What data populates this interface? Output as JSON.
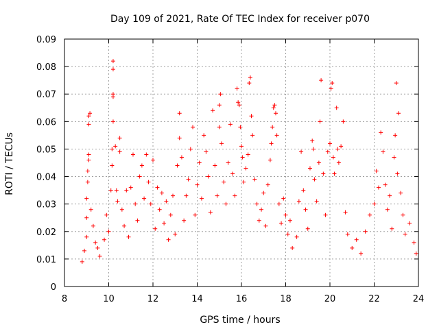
{
  "chart_data": {
    "type": "scatter",
    "title": "Day 109 of 2021, Rate Of TEC Index for receiver p070",
    "xlabel": "GPS time / hours",
    "ylabel": "ROTI / TECUs",
    "xlim": [
      8,
      24
    ],
    "ylim": [
      0,
      0.09
    ],
    "x_ticks": [
      8,
      10,
      12,
      14,
      16,
      18,
      20,
      22,
      24
    ],
    "x_tick_labels": [
      "8",
      "10",
      "12",
      "14",
      "16",
      "18",
      "20",
      "22",
      "24"
    ],
    "y_ticks": [
      0,
      0.01,
      0.02,
      0.03,
      0.04,
      0.05,
      0.06,
      0.07,
      0.08,
      0.09
    ],
    "y_tick_labels": [
      "0",
      "0.01",
      "0.02",
      "0.03",
      "0.04",
      "0.05",
      "0.06",
      "0.07",
      "0.08",
      "0.09"
    ],
    "grid": true,
    "marker": "plus",
    "series": [
      {
        "name": "ROTI",
        "color": "#ff0000",
        "points": [
          [
            8.8,
            0.009
          ],
          [
            8.9,
            0.013
          ],
          [
            9.0,
            0.018
          ],
          [
            9.0,
            0.025
          ],
          [
            9.0,
            0.032
          ],
          [
            9.05,
            0.038
          ],
          [
            9.05,
            0.042
          ],
          [
            9.1,
            0.046
          ],
          [
            9.1,
            0.048
          ],
          [
            9.1,
            0.059
          ],
          [
            9.1,
            0.062
          ],
          [
            9.15,
            0.063
          ],
          [
            9.2,
            0.028
          ],
          [
            9.3,
            0.022
          ],
          [
            9.4,
            0.016
          ],
          [
            9.5,
            0.014
          ],
          [
            9.6,
            0.011
          ],
          [
            9.8,
            0.017
          ],
          [
            9.9,
            0.026
          ],
          [
            10.0,
            0.02
          ],
          [
            10.1,
            0.035
          ],
          [
            10.15,
            0.044
          ],
          [
            10.15,
            0.05
          ],
          [
            10.2,
            0.06
          ],
          [
            10.2,
            0.069
          ],
          [
            10.2,
            0.07
          ],
          [
            10.2,
            0.079
          ],
          [
            10.2,
            0.082
          ],
          [
            10.3,
            0.051
          ],
          [
            10.35,
            0.035
          ],
          [
            10.4,
            0.031
          ],
          [
            10.5,
            0.054
          ],
          [
            10.5,
            0.049
          ],
          [
            10.6,
            0.028
          ],
          [
            10.7,
            0.022
          ],
          [
            10.8,
            0.035
          ],
          [
            10.9,
            0.018
          ],
          [
            11.0,
            0.036
          ],
          [
            11.1,
            0.048
          ],
          [
            11.2,
            0.03
          ],
          [
            11.3,
            0.024
          ],
          [
            11.4,
            0.04
          ],
          [
            11.5,
            0.044
          ],
          [
            11.6,
            0.032
          ],
          [
            11.7,
            0.048
          ],
          [
            11.8,
            0.038
          ],
          [
            11.9,
            0.03
          ],
          [
            12.0,
            0.046
          ],
          [
            12.1,
            0.021
          ],
          [
            12.2,
            0.036
          ],
          [
            12.3,
            0.028
          ],
          [
            12.4,
            0.034
          ],
          [
            12.5,
            0.023
          ],
          [
            12.6,
            0.031
          ],
          [
            12.7,
            0.017
          ],
          [
            12.8,
            0.026
          ],
          [
            12.9,
            0.033
          ],
          [
            13.0,
            0.019
          ],
          [
            13.1,
            0.044
          ],
          [
            13.2,
            0.054
          ],
          [
            13.2,
            0.063
          ],
          [
            13.3,
            0.047
          ],
          [
            13.4,
            0.024
          ],
          [
            13.5,
            0.033
          ],
          [
            13.6,
            0.039
          ],
          [
            13.7,
            0.05
          ],
          [
            13.8,
            0.058
          ],
          [
            13.9,
            0.026
          ],
          [
            14.0,
            0.037
          ],
          [
            14.1,
            0.045
          ],
          [
            14.2,
            0.032
          ],
          [
            14.3,
            0.055
          ],
          [
            14.4,
            0.049
          ],
          [
            14.5,
            0.04
          ],
          [
            14.6,
            0.027
          ],
          [
            14.7,
            0.064
          ],
          [
            14.8,
            0.044
          ],
          [
            14.9,
            0.033
          ],
          [
            15.0,
            0.058
          ],
          [
            15.0,
            0.066
          ],
          [
            15.05,
            0.07
          ],
          [
            15.1,
            0.052
          ],
          [
            15.2,
            0.038
          ],
          [
            15.3,
            0.03
          ],
          [
            15.4,
            0.045
          ],
          [
            15.5,
            0.059
          ],
          [
            15.6,
            0.041
          ],
          [
            15.7,
            0.033
          ],
          [
            15.8,
            0.072
          ],
          [
            15.85,
            0.067
          ],
          [
            15.9,
            0.066
          ],
          [
            15.95,
            0.058
          ],
          [
            16.0,
            0.051
          ],
          [
            16.05,
            0.047
          ],
          [
            16.1,
            0.038
          ],
          [
            16.2,
            0.043
          ],
          [
            16.3,
            0.048
          ],
          [
            16.35,
            0.074
          ],
          [
            16.4,
            0.076
          ],
          [
            16.45,
            0.062
          ],
          [
            16.5,
            0.055
          ],
          [
            16.6,
            0.039
          ],
          [
            16.7,
            0.03
          ],
          [
            16.8,
            0.024
          ],
          [
            16.9,
            0.028
          ],
          [
            17.0,
            0.034
          ],
          [
            17.1,
            0.022
          ],
          [
            17.2,
            0.037
          ],
          [
            17.3,
            0.046
          ],
          [
            17.35,
            0.052
          ],
          [
            17.4,
            0.058
          ],
          [
            17.45,
            0.065
          ],
          [
            17.5,
            0.066
          ],
          [
            17.55,
            0.063
          ],
          [
            17.6,
            0.055
          ],
          [
            17.7,
            0.03
          ],
          [
            17.8,
            0.023
          ],
          [
            17.9,
            0.032
          ],
          [
            18.0,
            0.026
          ],
          [
            18.1,
            0.019
          ],
          [
            18.2,
            0.024
          ],
          [
            18.3,
            0.014
          ],
          [
            18.5,
            0.018
          ],
          [
            18.6,
            0.031
          ],
          [
            18.7,
            0.049
          ],
          [
            18.8,
            0.035
          ],
          [
            18.9,
            0.028
          ],
          [
            19.0,
            0.021
          ],
          [
            19.1,
            0.043
          ],
          [
            19.2,
            0.053
          ],
          [
            19.25,
            0.05
          ],
          [
            19.3,
            0.039
          ],
          [
            19.4,
            0.031
          ],
          [
            19.5,
            0.045
          ],
          [
            19.55,
            0.06
          ],
          [
            19.6,
            0.075
          ],
          [
            19.7,
            0.041
          ],
          [
            19.8,
            0.026
          ],
          [
            19.9,
            0.049
          ],
          [
            20.0,
            0.052
          ],
          [
            20.05,
            0.072
          ],
          [
            20.1,
            0.074
          ],
          [
            20.15,
            0.047
          ],
          [
            20.2,
            0.041
          ],
          [
            20.3,
            0.065
          ],
          [
            20.35,
            0.05
          ],
          [
            20.4,
            0.045
          ],
          [
            20.5,
            0.051
          ],
          [
            20.6,
            0.06
          ],
          [
            20.7,
            0.027
          ],
          [
            20.8,
            0.019
          ],
          [
            21.0,
            0.014
          ],
          [
            21.2,
            0.017
          ],
          [
            21.4,
            0.012
          ],
          [
            21.6,
            0.02
          ],
          [
            21.8,
            0.026
          ],
          [
            22.0,
            0.03
          ],
          [
            22.1,
            0.042
          ],
          [
            22.2,
            0.036
          ],
          [
            22.3,
            0.056
          ],
          [
            22.4,
            0.049
          ],
          [
            22.5,
            0.037
          ],
          [
            22.6,
            0.028
          ],
          [
            22.7,
            0.033
          ],
          [
            22.8,
            0.021
          ],
          [
            22.9,
            0.047
          ],
          [
            22.95,
            0.055
          ],
          [
            23.0,
            0.074
          ],
          [
            23.05,
            0.041
          ],
          [
            23.1,
            0.063
          ],
          [
            23.2,
            0.034
          ],
          [
            23.3,
            0.026
          ],
          [
            23.4,
            0.019
          ],
          [
            23.6,
            0.023
          ],
          [
            23.8,
            0.016
          ],
          [
            23.9,
            0.012
          ]
        ]
      }
    ]
  }
}
